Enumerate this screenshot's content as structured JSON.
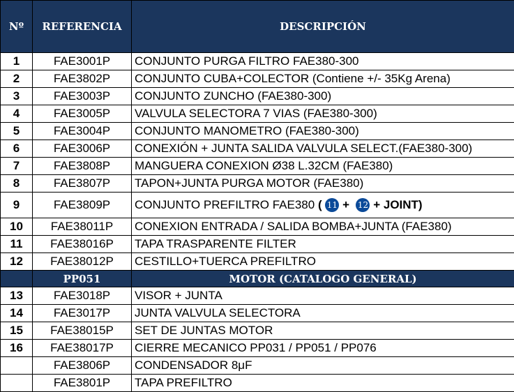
{
  "header": {
    "no": "Nº",
    "ref": "REFERENCIA",
    "desc": "DESCRIPCIÓN"
  },
  "rows": [
    {
      "no": "1",
      "ref": "FAE3001P",
      "desc": "CONJUNTO PURGA FILTRO FAE380-300"
    },
    {
      "no": "2",
      "ref": "FAE3802P",
      "desc": "CONJUNTO CUBA+COLECTOR (Contiene +/- 35Kg Arena)"
    },
    {
      "no": "3",
      "ref": "FAE3003P",
      "desc": "CONJUNTO ZUNCHO (FAE380-300)"
    },
    {
      "no": "4",
      "ref": "FAE3005P",
      "desc": "VALVULA SELECTORA 7 VIAS (FAE380-300)"
    },
    {
      "no": "5",
      "ref": "FAE3004P",
      "desc": "CONJUNTO MANOMETRO (FAE380-300)"
    },
    {
      "no": "6",
      "ref": "FAE3006P",
      "desc": "CONEXIÓN + JUNTA SALIDA VALVULA SELECT.(FAE380-300)"
    },
    {
      "no": "7",
      "ref": "FAE3808P",
      "desc": "MANGUERA CONEXION Ø38 L.32CM (FAE380)"
    },
    {
      "no": "8",
      "ref": "FAE3807P",
      "desc": "TAPON+JUNTA PURGA MOTOR (FAE380)"
    }
  ],
  "row9": {
    "no": "9",
    "ref": "FAE3809P",
    "desc": "CONJUNTO PREFILTRO FAE380",
    "open": "(",
    "c1": "11",
    "plus": "+",
    "c2": "12",
    "tail": "+ JOINT)"
  },
  "rows2": [
    {
      "no": "10",
      "ref": "FAE38011P",
      "desc": "CONEXION ENTRADA / SALIDA BOMBA+JUNTA (FAE380)"
    },
    {
      "no": "11",
      "ref": "FAE38016P",
      "desc": "TAPA TRASPARENTE FILTER"
    },
    {
      "no": "12",
      "ref": "FAE38012P",
      "desc": "CESTILLO+TUERCA PREFILTRO"
    }
  ],
  "section": {
    "ref": "PP051",
    "desc": "MOTOR (CATALOGO GENERAL)"
  },
  "rows3": [
    {
      "no": "13",
      "ref": "FAE3018P",
      "desc": "VISOR + JUNTA"
    },
    {
      "no": "14",
      "ref": "FAE3017P",
      "desc": "JUNTA VALVULA SELECTORA"
    },
    {
      "no": "15",
      "ref": "FAE38015P",
      "desc": "SET DE JUNTAS MOTOR"
    },
    {
      "no": "16",
      "ref": "FAE38017P",
      "desc": "CIERRE MECANICO PP031 / PP051 / PP076"
    },
    {
      "no": "",
      "ref": "FAE3806P",
      "desc": "CONDENSADOR 8μF"
    },
    {
      "no": "",
      "ref": "FAE3801P",
      "desc": "TAPA PREFILTRO"
    }
  ],
  "colors": {
    "header_bg": "#1b365d",
    "circle": "#0b4a99"
  }
}
